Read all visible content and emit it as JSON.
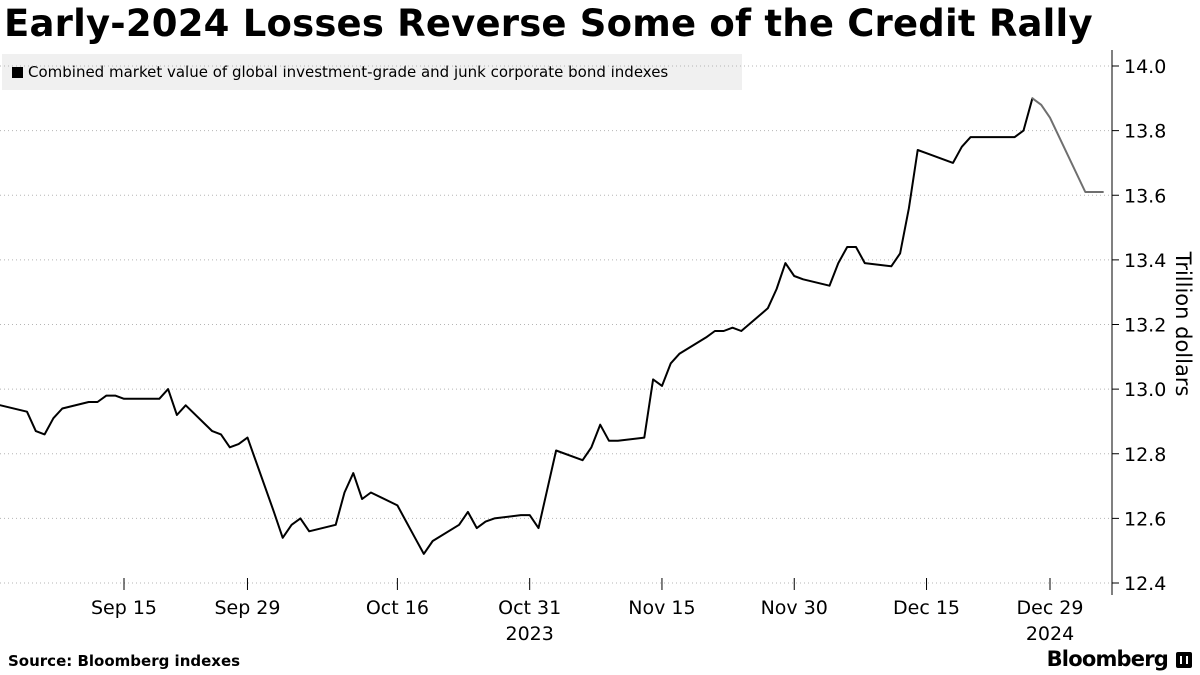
{
  "title": "Early-2024 Losses Reverse Some of the Credit Rally",
  "legend": {
    "label": "Combined market value of global investment-grade and junk corporate bond indexes",
    "swatch_color": "#000000"
  },
  "source": "Source: Bloomberg indexes",
  "brand": "Bloomberg",
  "chart_data": {
    "type": "line",
    "ylabel": "Trillion dollars",
    "ylim": [
      12.4,
      14.0
    ],
    "yticks": [
      "14.0",
      "13.8",
      "13.6",
      "13.4",
      "13.2",
      "13.0",
      "12.8",
      "12.6",
      "12.4"
    ],
    "y_axis_side": "right",
    "grid": "horizontal-dotted",
    "x_ticks": [
      {
        "label": "Sep 15",
        "sub": ""
      },
      {
        "label": "Sep 29",
        "sub": ""
      },
      {
        "label": "Oct 16",
        "sub": ""
      },
      {
        "label": "Oct 31",
        "sub": "2023"
      },
      {
        "label": "Nov 15",
        "sub": ""
      },
      {
        "label": "Nov 30",
        "sub": ""
      },
      {
        "label": "Dec 15",
        "sub": ""
      },
      {
        "label": "Dec 29",
        "sub": "2024"
      }
    ],
    "series": [
      {
        "color": "#000000",
        "x": [
          "2023-09-01",
          "2023-09-04",
          "2023-09-05",
          "2023-09-06",
          "2023-09-07",
          "2023-09-08",
          "2023-09-11",
          "2023-09-12",
          "2023-09-13",
          "2023-09-14",
          "2023-09-15",
          "2023-09-18",
          "2023-09-19",
          "2023-09-20",
          "2023-09-21",
          "2023-09-22",
          "2023-09-25",
          "2023-09-26",
          "2023-09-27",
          "2023-09-28",
          "2023-09-29",
          "2023-10-02",
          "2023-10-03",
          "2023-10-04",
          "2023-10-05",
          "2023-10-06",
          "2023-10-09",
          "2023-10-10",
          "2023-10-11",
          "2023-10-12",
          "2023-10-13",
          "2023-10-16",
          "2023-10-17",
          "2023-10-18",
          "2023-10-19",
          "2023-10-20",
          "2023-10-23",
          "2023-10-24",
          "2023-10-25",
          "2023-10-26",
          "2023-10-27",
          "2023-10-30",
          "2023-10-31",
          "2023-11-01",
          "2023-11-02",
          "2023-11-03",
          "2023-11-06",
          "2023-11-07",
          "2023-11-08",
          "2023-11-09",
          "2023-11-10",
          "2023-11-13",
          "2023-11-14",
          "2023-11-15",
          "2023-11-16",
          "2023-11-17",
          "2023-11-20",
          "2023-11-21",
          "2023-11-22",
          "2023-11-23",
          "2023-11-24",
          "2023-11-27",
          "2023-11-28",
          "2023-11-29",
          "2023-11-30",
          "2023-12-01",
          "2023-12-04",
          "2023-12-05",
          "2023-12-06",
          "2023-12-07",
          "2023-12-08",
          "2023-12-11",
          "2023-12-12",
          "2023-12-13",
          "2023-12-14",
          "2023-12-15",
          "2023-12-18",
          "2023-12-19",
          "2023-12-20",
          "2023-12-21",
          "2023-12-22",
          "2023-12-25",
          "2023-12-26",
          "2023-12-27"
        ],
        "values": [
          12.95,
          12.93,
          12.87,
          12.86,
          12.91,
          12.94,
          12.96,
          12.96,
          12.98,
          12.98,
          12.97,
          12.97,
          12.97,
          13.0,
          12.92,
          12.95,
          12.87,
          12.86,
          12.82,
          12.83,
          12.85,
          12.62,
          12.54,
          12.58,
          12.6,
          12.56,
          12.58,
          12.68,
          12.74,
          12.66,
          12.68,
          12.64,
          12.59,
          12.54,
          12.49,
          12.53,
          12.58,
          12.62,
          12.57,
          12.59,
          12.6,
          12.61,
          12.61,
          12.57,
          12.69,
          12.81,
          12.78,
          12.82,
          12.89,
          12.84,
          12.84,
          12.85,
          13.03,
          13.01,
          13.08,
          13.11,
          13.16,
          13.18,
          13.18,
          13.19,
          13.18,
          13.25,
          13.31,
          13.39,
          13.35,
          13.34,
          13.32,
          13.39,
          13.44,
          13.44,
          13.39,
          13.38,
          13.42,
          13.56,
          13.74,
          13.73,
          13.7,
          13.75,
          13.78,
          13.78,
          13.78,
          13.78,
          13.8,
          13.9
        ]
      },
      {
        "color": "#6f6f6f",
        "x": [
          "2023-12-27",
          "2023-12-28",
          "2023-12-29",
          "2024-01-02",
          "2024-01-03",
          "2024-01-04"
        ],
        "values": [
          13.9,
          13.88,
          13.84,
          13.61,
          13.61,
          13.61
        ]
      }
    ]
  }
}
